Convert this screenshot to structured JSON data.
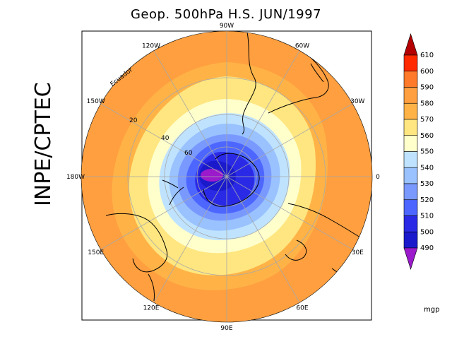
{
  "title": "Geop. 500hPa H.S. JUN/1997",
  "side_label": "INPE/CPTEC",
  "map": {
    "longitude_labels": [
      {
        "text": "90W",
        "angle": 90
      },
      {
        "text": "60W",
        "angle": 60
      },
      {
        "text": "30W",
        "angle": 30
      },
      {
        "text": "0",
        "angle": 0
      },
      {
        "text": "30E",
        "angle": -30
      },
      {
        "text": "60E",
        "angle": -60
      },
      {
        "text": "90E",
        "angle": -90
      },
      {
        "text": "120E",
        "angle": -120
      },
      {
        "text": "150E",
        "angle": -150
      },
      {
        "text": "180W",
        "angle": 180
      },
      {
        "text": "150W",
        "angle": 150
      },
      {
        "text": "120W",
        "angle": 120
      }
    ],
    "latitude_labels": [
      "20",
      "40",
      "60"
    ],
    "equator_label": "Ecuador"
  },
  "colorbar": {
    "unit": "mgp",
    "levels": [
      "610",
      "600",
      "590",
      "580",
      "570",
      "560",
      "550",
      "540",
      "530",
      "520",
      "510",
      "500",
      "490"
    ],
    "colors": {
      "gt610": "#b40000",
      "600-610": "#ff2a00",
      "590-600": "#ff7a2a",
      "580-590": "#ff9f3f",
      "570-580": "#ffb347",
      "560-570": "#ffe680",
      "550-560": "#ffffcc",
      "540-550": "#bfe3ff",
      "530-540": "#99c2ff",
      "520-530": "#7a99ff",
      "510-520": "#4d66ff",
      "500-510": "#2a2ae6",
      "490-500": "#1a1acc",
      "lt490": "#9a1acc"
    }
  }
}
